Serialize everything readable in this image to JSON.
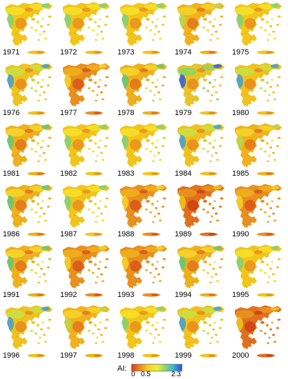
{
  "panels": [
    {
      "year": "1971",
      "style": "yellow"
    },
    {
      "year": "1972",
      "style": "yellow"
    },
    {
      "year": "1973",
      "style": "yellow"
    },
    {
      "year": "1974",
      "style": "yellow-dry"
    },
    {
      "year": "1975",
      "style": "yellow"
    },
    {
      "year": "1976",
      "style": "wet"
    },
    {
      "year": "1977",
      "style": "dry"
    },
    {
      "year": "1978",
      "style": "mixed"
    },
    {
      "year": "1979",
      "style": "very-wet"
    },
    {
      "year": "1980",
      "style": "wet"
    },
    {
      "year": "1981",
      "style": "mixed"
    },
    {
      "year": "1982",
      "style": "yellow"
    },
    {
      "year": "1983",
      "style": "yellow"
    },
    {
      "year": "1984",
      "style": "wet"
    },
    {
      "year": "1985",
      "style": "yellow-dry"
    },
    {
      "year": "1986",
      "style": "mixed"
    },
    {
      "year": "1987",
      "style": "yellow"
    },
    {
      "year": "1988",
      "style": "dry"
    },
    {
      "year": "1989",
      "style": "very-dry"
    },
    {
      "year": "1990",
      "style": "dry"
    },
    {
      "year": "1991",
      "style": "mixed"
    },
    {
      "year": "1992",
      "style": "dry"
    },
    {
      "year": "1993",
      "style": "dry"
    },
    {
      "year": "1994",
      "style": "mixed"
    },
    {
      "year": "1995",
      "style": "yellow"
    },
    {
      "year": "1996",
      "style": "wet"
    },
    {
      "year": "1997",
      "style": "yellow-dry"
    },
    {
      "year": "1998",
      "style": "yellow"
    },
    {
      "year": "1999",
      "style": "wet"
    },
    {
      "year": "2000",
      "style": "very-dry"
    }
  ],
  "palettes": {
    "yellow": {
      "base": "#f2c51a",
      "accent": "#f7e22c",
      "spot": "#e8901f",
      "blue": "#7fd17a"
    },
    "yellow-dry": {
      "base": "#efb21c",
      "accent": "#f5d52a",
      "spot": "#e3761c",
      "blue": "#b9d84a"
    },
    "dry": {
      "base": "#e8901e",
      "accent": "#f0b21c",
      "spot": "#d8561a",
      "blue": "#f5d52a"
    },
    "very-dry": {
      "base": "#e0701c",
      "accent": "#e99520",
      "spot": "#cc3f16",
      "blue": "#f2c51a"
    },
    "mixed": {
      "base": "#eeb01d",
      "accent": "#f6d82b",
      "spot": "#e2741c",
      "blue": "#5ec97c"
    },
    "wet": {
      "base": "#efc21f",
      "accent": "#c9e046",
      "spot": "#e88a1e",
      "blue": "#3f9ed8"
    },
    "very-wet": {
      "base": "#e9c429",
      "accent": "#8fd465",
      "spot": "#e88a1e",
      "blue": "#2f5fd6"
    }
  },
  "legend": {
    "title": "AI:",
    "ticks": [
      "0",
      "0.5",
      "2.3"
    ],
    "colors": [
      "#e03b16",
      "#ee8a1c",
      "#f7d21f",
      "#f6ee34",
      "#8cd66a",
      "#35b4dc",
      "#2a4fd8"
    ]
  }
}
